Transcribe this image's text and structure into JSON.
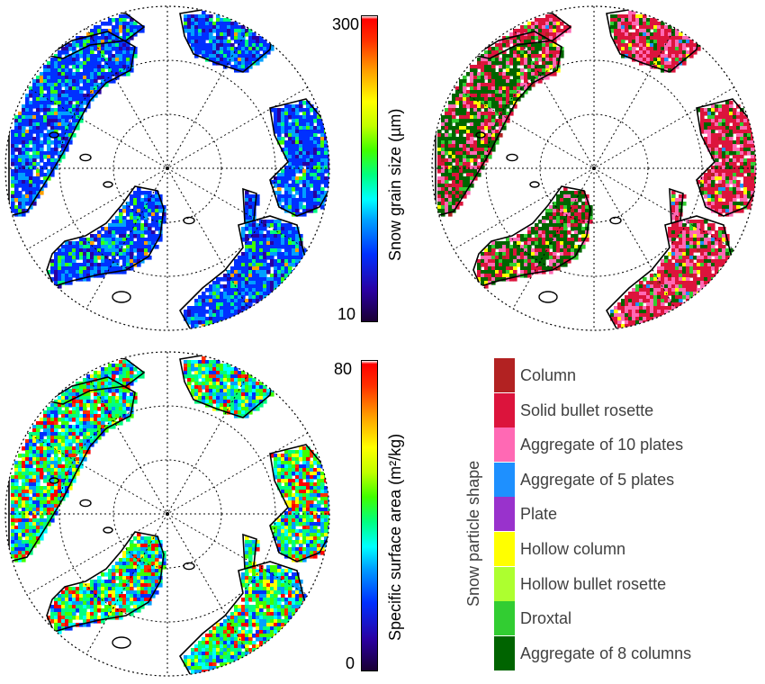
{
  "maps": [
    {
      "id": "grain-size-map",
      "variable": "Snow grain size",
      "palette": "spectral"
    },
    {
      "id": "shape-map",
      "variable": "Snow particle shape",
      "palette": "categorical"
    },
    {
      "id": "ssa-map",
      "variable": "Specific surface area",
      "palette": "spectral"
    }
  ],
  "colorbars": {
    "grain_size": {
      "title": "Snow grain size (µm)",
      "min": "10",
      "max": "300"
    },
    "ssa": {
      "title": "Specific surface area (m²/kg)",
      "min": "0",
      "max": "80"
    }
  },
  "legend": {
    "title": "Snow particle shape",
    "items": [
      {
        "label": "Column",
        "color": "#b22222"
      },
      {
        "label": "Solid bullet rosette",
        "color": "#dc143c"
      },
      {
        "label": "Aggregate of 10 plates",
        "color": "#ff69b4"
      },
      {
        "label": "Aggregate of 5 plates",
        "color": "#1e90ff"
      },
      {
        "label": "Plate",
        "color": "#9932cc"
      },
      {
        "label": "Hollow column",
        "color": "#ffff00"
      },
      {
        "label": "Hollow bullet rosette",
        "color": "#adff2f"
      },
      {
        "label": "Droxtal",
        "color": "#32cd32"
      },
      {
        "label": "Aggregate of 8 columns",
        "color": "#006400"
      }
    ]
  },
  "colors": {
    "spectral": [
      "#1a0033",
      "#2a00a0",
      "#0030ff",
      "#00a0ff",
      "#00ffff",
      "#00ff80",
      "#40ff00",
      "#c0ff00",
      "#ffff00",
      "#ffa000",
      "#ff3000",
      "#ff0000"
    ],
    "coastline": "#000000",
    "grid": "#000000"
  }
}
